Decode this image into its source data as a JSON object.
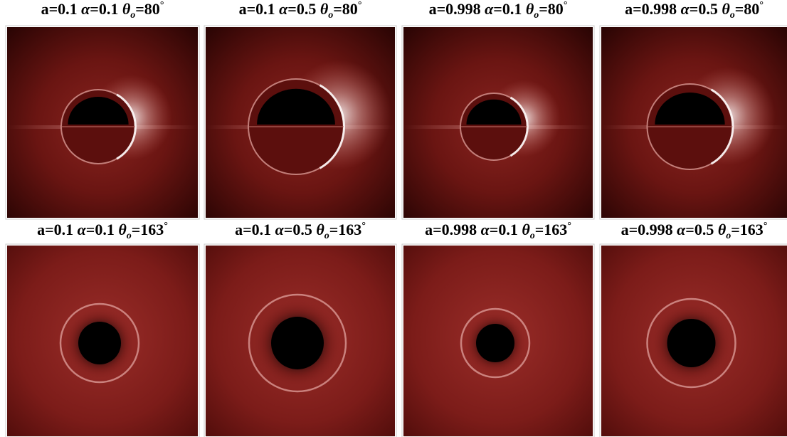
{
  "panels": [
    {
      "title": [
        "a=0.1 ",
        "α",
        "=0.1 ",
        "θ",
        "o",
        "=80",
        "°"
      ]
    },
    {
      "title": [
        "a=0.1 ",
        "α",
        "=0.5 ",
        "θ",
        "o",
        "=80",
        "°"
      ]
    },
    {
      "title": [
        "a=0.998 ",
        "α",
        "=0.1 ",
        "θ",
        "o",
        "=80",
        "°"
      ]
    },
    {
      "title": [
        "a=0.998 ",
        "α",
        "=0.5 ",
        "θ",
        "o",
        "=80",
        "°"
      ]
    },
    {
      "title": [
        "a=0.1 ",
        "α",
        "=0.1 ",
        "θ",
        "o",
        "=163",
        "°"
      ]
    },
    {
      "title": [
        "a=0.1 ",
        "α",
        "=0.5 ",
        "θ",
        "o",
        "=163",
        "°"
      ]
    },
    {
      "title": [
        "a=0.998 ",
        "α",
        "=0.1 ",
        "θ",
        "o",
        "=163",
        "°"
      ]
    },
    {
      "title": [
        "a=0.998 ",
        "α",
        "=0.5 ",
        "θ",
        "o",
        "=163",
        "°"
      ]
    }
  ]
}
